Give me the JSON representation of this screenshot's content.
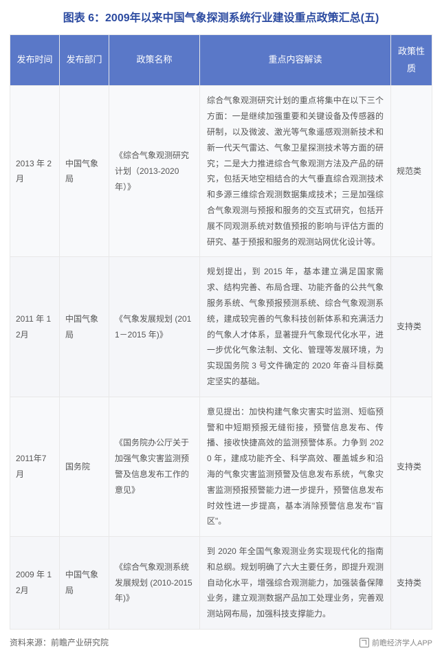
{
  "title": "图表 6：2009年以来中国气象探测系统行业建设重点政策汇总(五)",
  "columns": [
    "发布时间",
    "发布部门",
    "政策名称",
    "重点内容解读",
    "政策性质"
  ],
  "rows": [
    {
      "date": "2013 年 2月",
      "dept": "中国气象局",
      "name": "《综合气象观测研究计划（2013-2020 年）》",
      "desc": "综合气象观测研究计划的重点将集中在以下三个方面：一是继续加强重要和关键设备及传感器的研制，以及微波、激光等气象遥感观测新技术和新一代天气雷达、气象卫星探测技术等方面的研究；二是大力推进综合气象观测方法及产品的研究，包括天地空相结合的大气垂直综合观测技术和多源三维综合观测数据集成技术；三是加强综合气象观测与预报和服务的交互式研究，包括开展不同观测系统对数值预报的影响与评估方面的研究、基于预报和服务的观测站网优化设计等。",
      "type": "规范类"
    },
    {
      "date": "2011 年 12月",
      "dept": "中国气象局",
      "name": "《气象发展规划 (2011－2015 年)》",
      "desc": "规划提出，到 2015 年，基本建立满足国家需求、结构完善、布局合理、功能齐备的公共气象服务系统、气象预报预测系统、综合气象观测系统，建成较完善的气象科技创新体系和充满活力的气象人才体系，显著提升气象现代化水平，进一步优化气象法制、文化、管理等发展环境，为实现国务院 3 号文件确定的 2020 年奋斗目标奠定坚实的基础。",
      "type": "支持类"
    },
    {
      "date": "2011年7月",
      "dept": "国务院",
      "name": "《国务院办公厅关于加强气象灾害监测预警及信息发布工作的意见》",
      "desc": "意见提出：加快构建气象灾害实时监测、短临预警和中短期预报无缝衔接，预警信息发布、传播、接收快捷高效的监测预警体系。力争到 2020 年，建成功能齐全、科学高效、覆盖城乡和沿海的气象灾害监测预警及信息发布系统，气象灾害监测预报预警能力进一步提升，预警信息发布时效性进一步提高，基本消除预警信息发布\"盲区\"。",
      "type": "支持类"
    },
    {
      "date": "2009 年 12月",
      "dept": "中国气象局",
      "name": "《综合气象观测系统发展规划 (2010-2015 年)》",
      "desc": "到 2020 年全国气象观测业务实现现代化的指南和总纲。规划明确了六大主要任务，即提升观测自动化水平，增强综合观测能力，加强装备保障业务，建立观测数据产品加工处理业务，完善观测站网布局，加强科技支撑能力。",
      "type": "支持类"
    }
  ],
  "sourceLabel": "资料来源：前瞻产业研究院",
  "brand": "前瞻经济学人APP"
}
